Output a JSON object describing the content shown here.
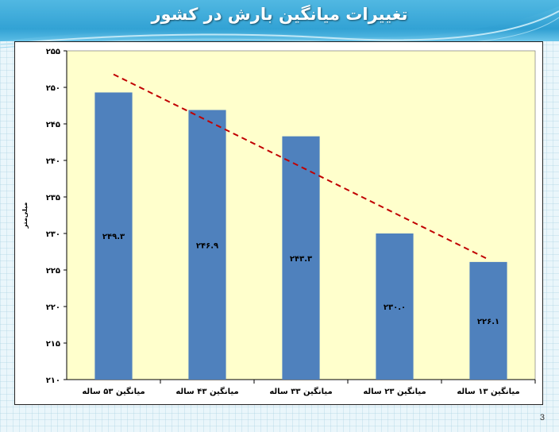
{
  "slide": {
    "title": "تغییرات میانگین بارش در کشور",
    "page_number": "3"
  },
  "colors": {
    "bar": "#4f81bd",
    "trendline": "#c00000",
    "plot_background": "#ffffcc",
    "title_band": "#2f9fd2"
  },
  "chart_data": {
    "type": "bar",
    "title": "",
    "xlabel": "",
    "ylabel": "میلی‌متر",
    "ylim": [
      210,
      255
    ],
    "yticks": [
      210,
      215,
      220,
      225,
      230,
      235,
      240,
      245,
      250,
      255
    ],
    "ytick_labels": [
      "۲۱۰",
      "۲۱۵",
      "۲۲۰",
      "۲۲۵",
      "۲۳۰",
      "۲۳۵",
      "۲۴۰",
      "۲۴۵",
      "۲۵۰",
      "۲۵۵"
    ],
    "categories": [
      "میانگین ۵۳ ساله",
      "میانگین ۴۳ ساله",
      "میانگین ۳۳ ساله",
      "میانگین ۲۳ ساله",
      "میانگین ۱۳ ساله"
    ],
    "values": [
      249.3,
      246.9,
      243.3,
      230.0,
      226.1
    ],
    "value_labels": [
      "۲۴۹.۳",
      "۲۴۶.۹",
      "۲۴۳.۳",
      "۲۳۰.۰",
      "۲۲۶.۱"
    ],
    "trendline": {
      "type": "linear",
      "style": "dashed"
    },
    "grid": false,
    "legend": "none"
  }
}
